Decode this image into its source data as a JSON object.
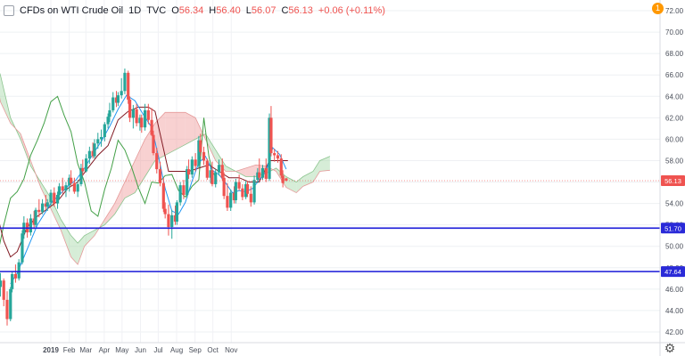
{
  "header": {
    "symbol": "CFDs on WTI Crude Oil",
    "interval": "1D",
    "exchange": "TVC",
    "open_label": "O",
    "open": "56.34",
    "high_label": "H",
    "high": "56.40",
    "low_label": "L",
    "low": "56.07",
    "close_label": "C",
    "close": "56.13",
    "change": "+0.06 (+0.11%)"
  },
  "alert_count": "1",
  "colors": {
    "up": "#26a69a",
    "down": "#ef5350",
    "conversion": "#2196f3",
    "base": "#801922",
    "lagging": "#43a047",
    "cloud_bull": "#a5d6a7",
    "cloud_bear": "#ef9a9a",
    "hline": "#1a1ad8",
    "price_tag": "#ef5350",
    "hline_tag": "#2a2ad8"
  },
  "chart_data": {
    "type": "candlestick",
    "y_ticks": [
      "42.00",
      "44.00",
      "46.00",
      "48.00",
      "50.00",
      "52.00",
      "54.00",
      "56.00",
      "58.00",
      "60.00",
      "62.00",
      "64.00",
      "66.00",
      "68.00",
      "70.00",
      "72.00"
    ],
    "x_ticks": [
      "2019",
      "Feb",
      "Mar",
      "Apr",
      "May",
      "Jun",
      "Jul",
      "Aug",
      "Sep",
      "Oct",
      "Nov"
    ],
    "ylim": [
      41,
      73
    ],
    "candles": [
      [
        -40,
        52.5,
        53.5,
        50.4,
        51.5
      ],
      [
        -38,
        51.5,
        52.4,
        49.9,
        50.2
      ],
      [
        -37,
        50.2,
        51.8,
        49.0,
        51.2
      ],
      [
        -35,
        51.2,
        52.0,
        48.5,
        49.0
      ],
      [
        -33,
        49.0,
        49.6,
        46.5,
        47.0
      ],
      [
        -31,
        47.0,
        48.0,
        45.0,
        46.2
      ],
      [
        -30,
        46.2,
        47.5,
        45.3,
        46.8
      ],
      [
        -28,
        46.8,
        47.0,
        44.4,
        45.0
      ],
      [
        -26,
        45.0,
        45.8,
        42.6,
        43.2
      ],
      [
        -24,
        43.2,
        46.2,
        43.0,
        46.0
      ],
      [
        -23,
        46.0,
        47.6,
        45.7,
        47.4
      ],
      [
        -21,
        47.4,
        48.3,
        46.6,
        47.0
      ],
      [
        -19,
        47.0,
        48.8,
        46.8,
        48.5
      ],
      [
        -17,
        48.5,
        51.5,
        48.3,
        51.2
      ],
      [
        -16,
        51.2,
        52.8,
        50.7,
        52.2
      ],
      [
        -14,
        52.2,
        52.6,
        50.8,
        51.3
      ],
      [
        -12,
        51.3,
        53.0,
        51.0,
        52.6
      ],
      [
        -10,
        52.6,
        53.3,
        51.6,
        52.0
      ],
      [
        -9,
        52.0,
        53.6,
        51.8,
        53.4
      ],
      [
        -7,
        53.4,
        54.4,
        52.7,
        53.2
      ],
      [
        -5,
        53.2,
        54.4,
        53.0,
        54.0
      ],
      [
        -3,
        54.0,
        54.8,
        53.4,
        53.7
      ],
      [
        -2,
        53.7,
        54.4,
        53.3,
        54.1
      ],
      [
        0,
        54.1,
        55.3,
        53.8,
        55.0
      ],
      [
        2,
        55.0,
        55.5,
        53.7,
        54.0
      ],
      [
        4,
        54.0,
        55.1,
        53.5,
        54.8
      ],
      [
        5,
        54.8,
        55.9,
        54.4,
        55.6
      ],
      [
        7,
        55.6,
        56.4,
        54.9,
        55.2
      ],
      [
        9,
        55.2,
        56.0,
        54.6,
        55.7
      ],
      [
        11,
        55.7,
        56.7,
        55.1,
        56.4
      ],
      [
        12,
        56.4,
        57.1,
        55.6,
        55.9
      ],
      [
        14,
        55.9,
        56.4,
        54.9,
        55.1
      ],
      [
        16,
        55.1,
        56.2,
        54.6,
        55.8
      ],
      [
        18,
        55.8,
        57.7,
        55.6,
        57.3
      ],
      [
        19,
        57.3,
        58.1,
        56.6,
        57.0
      ],
      [
        21,
        57.0,
        58.6,
        56.9,
        58.2
      ],
      [
        23,
        58.2,
        59.3,
        57.7,
        58.9
      ],
      [
        25,
        58.9,
        59.7,
        58.2,
        58.4
      ],
      [
        26,
        58.4,
        60.0,
        58.2,
        59.6
      ],
      [
        28,
        59.6,
        60.6,
        59.1,
        60.0
      ],
      [
        30,
        60.0,
        60.9,
        59.3,
        60.2
      ],
      [
        32,
        60.2,
        61.6,
        59.8,
        61.4
      ],
      [
        34,
        61.4,
        62.4,
        61.0,
        62.1
      ],
      [
        35,
        62.1,
        63.4,
        61.6,
        62.7
      ],
      [
        37,
        62.7,
        64.4,
        62.5,
        63.9
      ],
      [
        39,
        63.9,
        64.5,
        63.0,
        63.4
      ],
      [
        40,
        63.4,
        64.4,
        63.1,
        64.1
      ],
      [
        42,
        64.1,
        65.7,
        63.8,
        64.5
      ],
      [
        44,
        64.5,
        66.6,
        64.2,
        66.2
      ],
      [
        46,
        66.2,
        66.4,
        63.3,
        63.7
      ],
      [
        47,
        63.7,
        64.0,
        61.6,
        62.0
      ],
      [
        49,
        62.0,
        63.2,
        61.0,
        62.8
      ],
      [
        51,
        62.8,
        63.3,
        61.2,
        61.5
      ],
      [
        53,
        61.5,
        62.3,
        60.8,
        62.0
      ],
      [
        54,
        62.0,
        62.3,
        60.6,
        61.1
      ],
      [
        56,
        61.1,
        63.3,
        60.8,
        62.7
      ],
      [
        58,
        62.7,
        63.3,
        61.4,
        61.8
      ],
      [
        60,
        61.8,
        62.9,
        60.3,
        60.4
      ],
      [
        61,
        60.4,
        60.8,
        58.5,
        58.7
      ],
      [
        63,
        58.7,
        59.2,
        56.8,
        57.2
      ],
      [
        65,
        57.2,
        57.9,
        55.6,
        55.9
      ],
      [
        67,
        55.9,
        56.4,
        53.2,
        53.5
      ],
      [
        68,
        53.5,
        54.1,
        52.6,
        53.0
      ],
      [
        70,
        53.0,
        53.9,
        51.0,
        51.8
      ],
      [
        72,
        51.8,
        53.4,
        50.7,
        52.9
      ],
      [
        74,
        52.9,
        53.8,
        52.0,
        52.3
      ],
      [
        75,
        52.3,
        54.3,
        52.0,
        54.1
      ],
      [
        77,
        54.1,
        56.0,
        53.8,
        55.7
      ],
      [
        79,
        55.7,
        56.2,
        54.4,
        54.8
      ],
      [
        81,
        54.8,
        57.5,
        54.5,
        57.2
      ],
      [
        82,
        57.2,
        58.1,
        56.3,
        56.7
      ],
      [
        84,
        56.7,
        58.4,
        56.4,
        58.1
      ],
      [
        86,
        58.1,
        58.7,
        57.0,
        57.5
      ],
      [
        88,
        57.5,
        60.3,
        57.3,
        59.9
      ],
      [
        89,
        59.9,
        60.5,
        58.4,
        58.8
      ],
      [
        91,
        58.8,
        59.3,
        57.6,
        58.0
      ],
      [
        93,
        58.0,
        58.2,
        56.2,
        56.4
      ],
      [
        95,
        56.4,
        57.4,
        55.9,
        57.1
      ],
      [
        96,
        57.1,
        57.9,
        55.6,
        55.8
      ],
      [
        98,
        55.8,
        57.2,
        55.5,
        56.9
      ],
      [
        100,
        56.9,
        58.1,
        56.6,
        57.6
      ],
      [
        102,
        57.6,
        58.2,
        56.1,
        56.4
      ],
      [
        103,
        56.4,
        56.9,
        54.4,
        54.7
      ],
      [
        105,
        54.7,
        55.9,
        53.3,
        53.6
      ],
      [
        107,
        53.6,
        55.3,
        53.3,
        55.0
      ],
      [
        109,
        55.0,
        55.6,
        54.0,
        54.3
      ],
      [
        110,
        54.3,
        56.3,
        54.0,
        56.0
      ],
      [
        112,
        56.0,
        56.7,
        55.2,
        55.4
      ],
      [
        114,
        55.4,
        55.8,
        54.3,
        54.6
      ],
      [
        116,
        54.6,
        56.1,
        54.4,
        55.8
      ],
      [
        117,
        55.8,
        56.1,
        54.6,
        54.9
      ],
      [
        119,
        54.9,
        55.6,
        53.7,
        54.1
      ],
      [
        121,
        54.1,
        56.6,
        53.9,
        56.2
      ],
      [
        123,
        56.2,
        57.3,
        55.9,
        56.9
      ],
      [
        124,
        56.9,
        58.2,
        56.1,
        56.4
      ],
      [
        126,
        56.4,
        57.6,
        56.2,
        57.3
      ],
      [
        128,
        57.3,
        58.2,
        56.0,
        56.3
      ],
      [
        130,
        56.3,
        62.4,
        56.1,
        62.0
      ],
      [
        131,
        62.0,
        63.1,
        58.4,
        58.7
      ],
      [
        133,
        58.7,
        59.1,
        57.9,
        58.5
      ],
      [
        135,
        58.5,
        58.9,
        57.8,
        58.2
      ],
      [
        137,
        58.2,
        58.6,
        56.4,
        56.6
      ],
      [
        138,
        56.6,
        57.1,
        55.5,
        55.9
      ],
      [
        140,
        56.34,
        56.4,
        56.07,
        56.13
      ]
    ],
    "conversion": [
      [
        -24,
        46.5
      ],
      [
        -20,
        47.5
      ],
      [
        -16,
        49.0
      ],
      [
        -12,
        50.5
      ],
      [
        -8,
        52.0
      ],
      [
        -4,
        53.0
      ],
      [
        0,
        54.0
      ],
      [
        5,
        54.8
      ],
      [
        10,
        55.6
      ],
      [
        15,
        56.2
      ],
      [
        20,
        57.3
      ],
      [
        25,
        58.6
      ],
      [
        30,
        59.8
      ],
      [
        35,
        61.2
      ],
      [
        40,
        62.8
      ],
      [
        45,
        64.1
      ],
      [
        50,
        63.6
      ],
      [
        55,
        62.3
      ],
      [
        60,
        61.1
      ],
      [
        64,
        58.4
      ],
      [
        68,
        55.4
      ],
      [
        72,
        53.3
      ],
      [
        76,
        53.0
      ],
      [
        80,
        54.1
      ],
      [
        84,
        56.1
      ],
      [
        88,
        57.8
      ],
      [
        92,
        58.4
      ],
      [
        96,
        57.1
      ],
      [
        100,
        56.7
      ],
      [
        104,
        55.9
      ],
      [
        108,
        55.0
      ],
      [
        112,
        55.2
      ],
      [
        116,
        55.1
      ],
      [
        120,
        55.4
      ],
      [
        124,
        56.2
      ],
      [
        128,
        57.0
      ],
      [
        132,
        59.2
      ],
      [
        136,
        58.6
      ],
      [
        140,
        57.2
      ]
    ],
    "base": [
      [
        -40,
        58.0
      ],
      [
        -36,
        57.0
      ],
      [
        -32,
        53.0
      ],
      [
        -28,
        50.5
      ],
      [
        -24,
        49.0
      ],
      [
        -20,
        49.5
      ],
      [
        -14,
        51.8
      ],
      [
        -8,
        52.8
      ],
      [
        -2,
        53.5
      ],
      [
        4,
        54.2
      ],
      [
        10,
        55.4
      ],
      [
        16,
        56.0
      ],
      [
        22,
        57.3
      ],
      [
        28,
        58.5
      ],
      [
        34,
        59.4
      ],
      [
        40,
        61.8
      ],
      [
        46,
        62.6
      ],
      [
        52,
        63.0
      ],
      [
        58,
        63.0
      ],
      [
        62,
        62.6
      ],
      [
        66,
        59.8
      ],
      [
        70,
        57.0
      ],
      [
        76,
        57.0
      ],
      [
        82,
        57.0
      ],
      [
        88,
        57.3
      ],
      [
        94,
        57.6
      ],
      [
        100,
        57.0
      ],
      [
        106,
        56.4
      ],
      [
        112,
        56.4
      ],
      [
        118,
        56.0
      ],
      [
        124,
        56.0
      ],
      [
        130,
        58.0
      ],
      [
        136,
        58.0
      ],
      [
        141,
        58.0
      ]
    ],
    "lagging": [
      [
        -40,
        53.0
      ],
      [
        -36,
        51.0
      ],
      [
        -32,
        49.0
      ],
      [
        -28,
        52.0
      ],
      [
        -24,
        54.5
      ],
      [
        -20,
        55.1
      ],
      [
        -16,
        56.3
      ],
      [
        -12,
        58.5
      ],
      [
        -8,
        59.9
      ],
      [
        -4,
        61.5
      ],
      [
        0,
        63.5
      ],
      [
        4,
        64.0
      ],
      [
        8,
        62.2
      ],
      [
        12,
        60.7
      ],
      [
        16,
        57.7
      ],
      [
        20,
        56.0
      ],
      [
        24,
        53.3
      ],
      [
        28,
        52.8
      ],
      [
        32,
        55.3
      ],
      [
        36,
        57.3
      ],
      [
        40,
        59.9
      ],
      [
        44,
        59.0
      ],
      [
        48,
        57.4
      ],
      [
        52,
        55.5
      ],
      [
        56,
        54.0
      ],
      [
        60,
        56.0
      ],
      [
        64,
        55.9
      ],
      [
        68,
        56.6
      ],
      [
        72,
        56.7
      ],
      [
        76,
        55.2
      ],
      [
        80,
        54.6
      ],
      [
        84,
        55.6
      ],
      [
        88,
        56.2
      ],
      [
        91,
        62.0
      ],
      [
        94,
        58.4
      ],
      [
        96,
        57.0
      ],
      [
        98,
        56.5
      ]
    ],
    "cloud": [
      [
        -40,
        71.5,
        70.5
      ],
      [
        -36,
        68.5,
        69.0
      ],
      [
        -30,
        66.0,
        63.5
      ],
      [
        -24,
        62.0,
        61.5
      ],
      [
        -18,
        60.0,
        60.5
      ],
      [
        -12,
        57.5,
        58.0
      ],
      [
        -6,
        56.0,
        55.5
      ],
      [
        0,
        54.5,
        53.5
      ],
      [
        6,
        52.5,
        51.5
      ],
      [
        12,
        51.0,
        49.0
      ],
      [
        16,
        50.3,
        48.3
      ],
      [
        20,
        51.0,
        50.0
      ],
      [
        26,
        51.5,
        51.0
      ],
      [
        32,
        52.0,
        52.5
      ],
      [
        38,
        53.0,
        54.0
      ],
      [
        44,
        54.5,
        56.0
      ],
      [
        50,
        55.0,
        58.0
      ],
      [
        56,
        56.5,
        60.0
      ],
      [
        62,
        58.0,
        61.5
      ],
      [
        68,
        58.5,
        62.5
      ],
      [
        74,
        59.0,
        62.5
      ],
      [
        80,
        59.5,
        62.5
      ],
      [
        86,
        60.0,
        62.0
      ],
      [
        92,
        60.5,
        60.0
      ],
      [
        98,
        59.0,
        58.0
      ],
      [
        104,
        57.5,
        57.0
      ],
      [
        110,
        57.0,
        57.0
      ],
      [
        116,
        56.5,
        57.3
      ],
      [
        122,
        56.5,
        57.6
      ],
      [
        128,
        56.8,
        57.5
      ],
      [
        134,
        57.3,
        57.0
      ],
      [
        140,
        56.5,
        55.5
      ],
      [
        146,
        56.0,
        55.0
      ],
      [
        150,
        56.5,
        55.6
      ],
      [
        156,
        57.0,
        56.0
      ],
      [
        160,
        58.0,
        57.0
      ],
      [
        166,
        58.4,
        57.1
      ]
    ],
    "price_line": 56.13,
    "price_tag": "56.13",
    "horizontal_levels": [
      {
        "value": 51.7,
        "label": "51.70"
      },
      {
        "value": 47.64,
        "label": "47.64"
      }
    ]
  }
}
